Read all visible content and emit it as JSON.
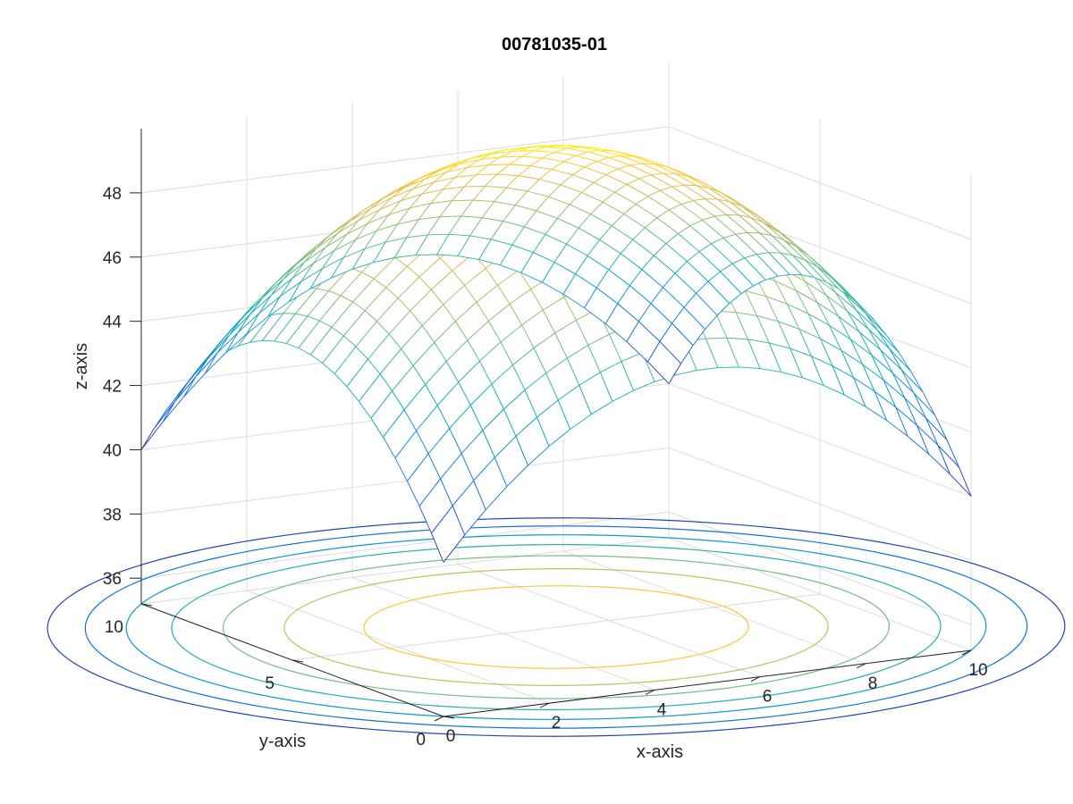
{
  "chart_data": {
    "type": "surface",
    "title": "00781035-01",
    "xlabel": "x-axis",
    "ylabel": "y-axis",
    "zlabel": "z-axis",
    "xlim": [
      0,
      10
    ],
    "ylim": [
      0,
      10
    ],
    "zlim": [
      35.2,
      50
    ],
    "x_ticks": [
      0,
      2,
      4,
      6,
      8,
      10
    ],
    "y_ticks": [
      0,
      5,
      10
    ],
    "z_ticks": [
      36,
      38,
      40,
      42,
      44,
      46,
      48
    ],
    "x_tick_labels": [
      "0",
      "2",
      "4",
      "6",
      "8",
      "10"
    ],
    "y_tick_labels": [
      "0",
      "5",
      "10"
    ],
    "z_tick_labels": [
      "36",
      "38",
      "40",
      "42",
      "44",
      "46",
      "48"
    ],
    "function": "z = 50 - (x-5)^2/5 - (y-5)^2/5",
    "grid_x_count": 26,
    "grid_y_count": 26,
    "surface_style": "mesh",
    "colormap": "parula",
    "contour_levels": [
      36,
      38,
      40,
      42,
      44,
      46,
      48
    ],
    "grid": true,
    "colors": {
      "axis": "#262626",
      "grid": "#dcdcdc",
      "background": "#ffffff",
      "colormap_stops": [
        "#352a87",
        "#0f5cdd",
        "#1481d6",
        "#06a4ca",
        "#2eb7a4",
        "#87bf77",
        "#d1bb59",
        "#fec832",
        "#f9fb0e"
      ]
    }
  }
}
